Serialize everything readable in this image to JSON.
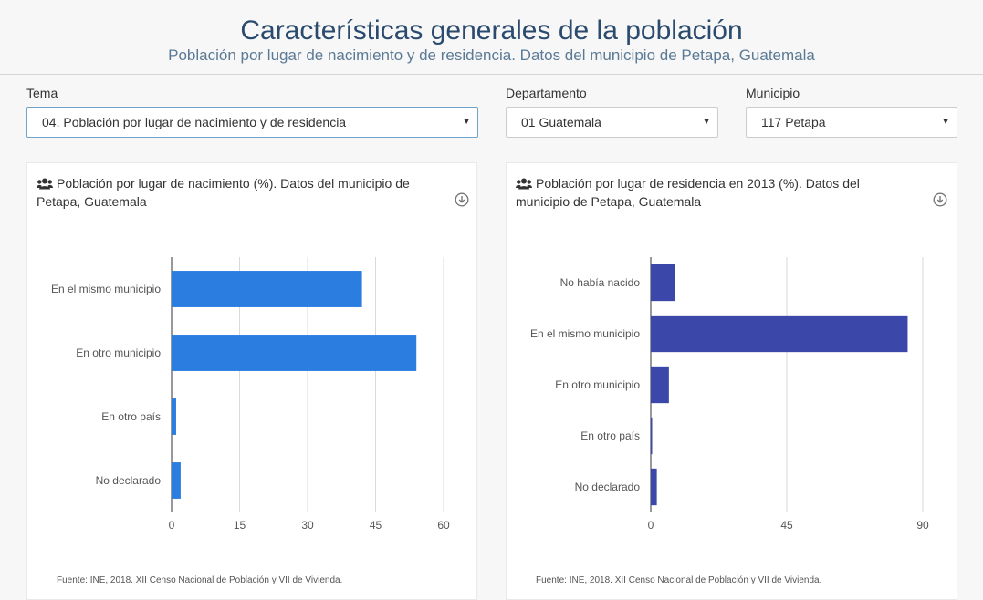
{
  "header": {
    "title": "Características generales de la población",
    "subtitle": "Población por lugar de nacimiento y de residencia. Datos del municipio de Petapa, Guatemala"
  },
  "filters": {
    "tema": {
      "label": "Tema",
      "value": "04. Población por lugar de nacimiento y de residencia"
    },
    "departamento": {
      "label": "Departamento",
      "value": "01 Guatemala"
    },
    "municipio": {
      "label": "Municipio",
      "value": "117 Petapa"
    },
    "caret": "▼"
  },
  "icons": [
    "users-icon",
    "download-icon",
    "chevron-down-icon"
  ],
  "colors": {
    "left_bars": "#2b7de0",
    "right_bars": "#3b48aa",
    "title": "#2a4a6e"
  },
  "panels": [
    {
      "title": "Población por lugar de nacimiento (%). Datos del municipio de Petapa, Guatemala",
      "source": "Fuente: INE, 2018. XII Censo Nacional de Población y VII de Vivienda."
    },
    {
      "title": "Población por lugar de residencia en 2013 (%). Datos del municipio de Petapa, Guatemala",
      "source": "Fuente: INE, 2018. XII Censo Nacional de Población y VII de Vivienda."
    }
  ],
  "chart_data": [
    {
      "type": "bar",
      "orientation": "horizontal",
      "title": "Población por lugar de nacimiento (%). Datos del municipio de Petapa, Guatemala",
      "categories": [
        "En el mismo municipio",
        "En otro municipio",
        "En otro país",
        "No declarado"
      ],
      "values": [
        42,
        54,
        1,
        2
      ],
      "xlim": [
        0,
        60
      ],
      "ticks": [
        0,
        15,
        30,
        45,
        60
      ],
      "grid": true,
      "color": "#2b7de0"
    },
    {
      "type": "bar",
      "orientation": "horizontal",
      "title": "Población por lugar de residencia en 2013 (%). Datos del municipio de Petapa, Guatemala",
      "categories": [
        "No había nacido",
        "En el mismo municipio",
        "En otro municipio",
        "En otro país",
        "No declarado"
      ],
      "values": [
        8,
        85,
        6,
        0.3,
        2
      ],
      "xlim": [
        0,
        90
      ],
      "ticks": [
        0,
        45,
        90
      ],
      "grid": true,
      "color": "#3b48aa"
    }
  ]
}
